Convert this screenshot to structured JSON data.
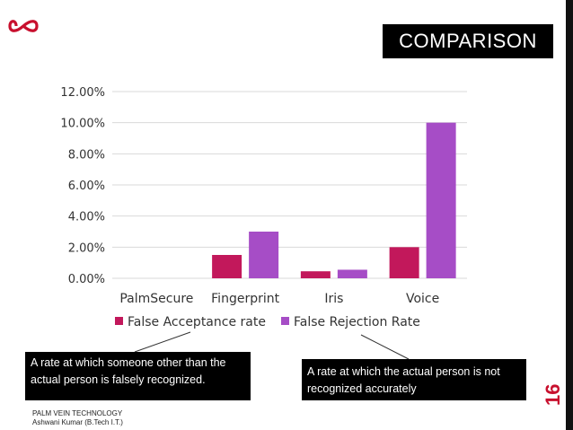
{
  "slide": {
    "title": "COMPARISON",
    "page_number": "16",
    "footer_line1": "PALM VEIN TECHNOLOGY",
    "footer_line2": "Ashwani Kumar (B.Tech I.T.)",
    "accent_color": "#c8102e",
    "logo_icon": "infinity-icon"
  },
  "callouts": {
    "far_definition": "A rate at which someone other than the actual person is falsely recognized.",
    "frr_definition": "A rate at which the actual person is not recognized accurately"
  },
  "chart_data": {
    "type": "bar",
    "title": "",
    "xlabel": "",
    "ylabel": "",
    "ylim": [
      0,
      12
    ],
    "yticks": [
      "0.00%",
      "2.00%",
      "4.00%",
      "6.00%",
      "8.00%",
      "10.00%",
      "12.00%"
    ],
    "categories": [
      "PalmSecure",
      "Fingerprint",
      "Iris",
      "Voice"
    ],
    "series": [
      {
        "name": "False Acceptance rate",
        "color": "#c2185b",
        "values": [
          0.0,
          1.5,
          0.45,
          2.0
        ]
      },
      {
        "name": "False Rejection Rate",
        "color": "#a64dc6",
        "values": [
          0.0,
          3.0,
          0.55,
          10.0
        ]
      }
    ],
    "legend_position": "bottom",
    "grid": true
  }
}
